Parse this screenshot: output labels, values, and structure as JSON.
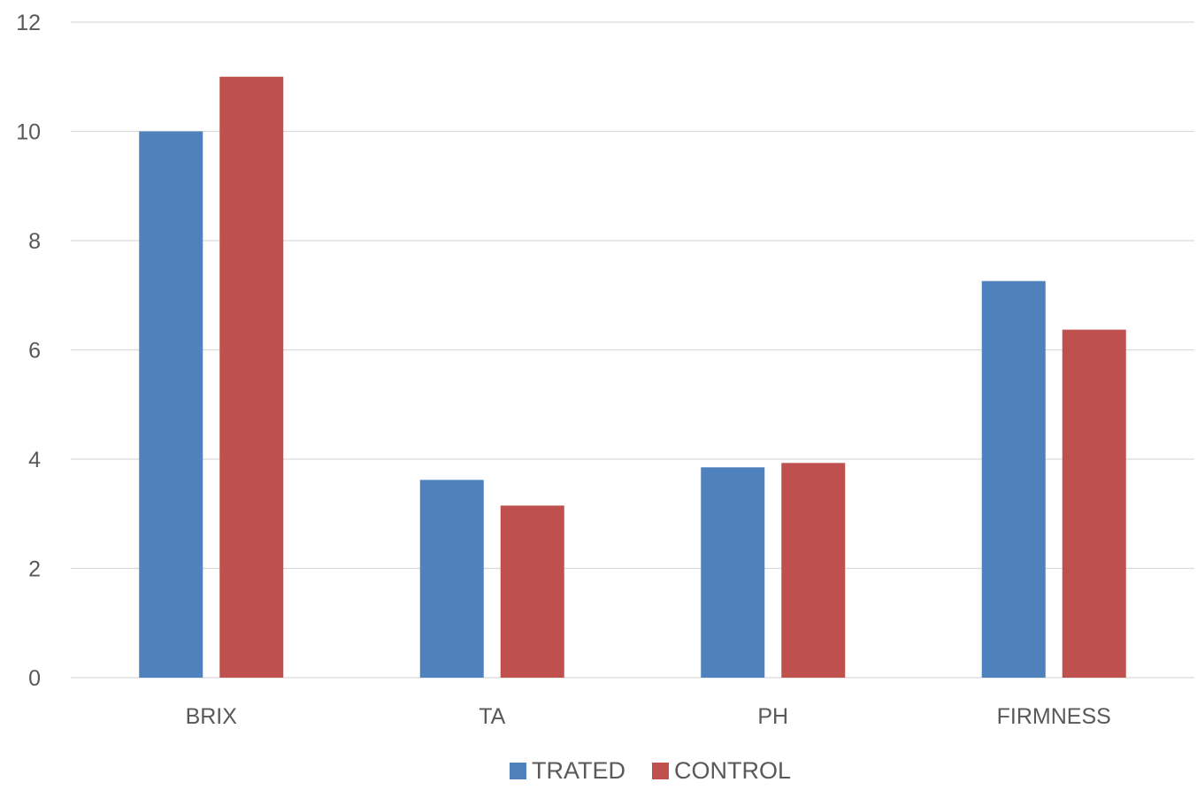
{
  "chart_data": {
    "type": "bar",
    "title": "",
    "xlabel": "",
    "ylabel": "",
    "categories": [
      "BRIX",
      "TA",
      "PH",
      "FIRMNESS"
    ],
    "series": [
      {
        "name": "TRATED",
        "color": "#4f81bd",
        "values": [
          10,
          3.62,
          3.85,
          7.26
        ]
      },
      {
        "name": "CONTROL",
        "color": "#c0504d",
        "values": [
          11,
          3.15,
          3.93,
          6.37
        ]
      }
    ],
    "ylim": [
      0,
      12
    ],
    "yticks": [
      0,
      2,
      4,
      6,
      8,
      10,
      12
    ],
    "grid": true,
    "legend_position": "bottom"
  }
}
